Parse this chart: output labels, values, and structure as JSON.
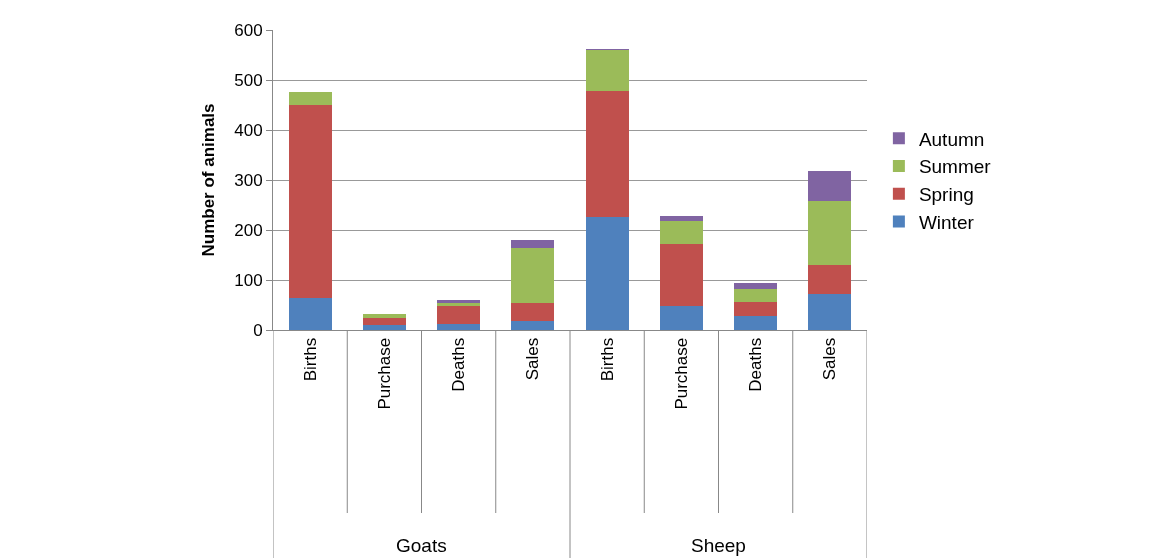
{
  "chart_data": {
    "type": "bar",
    "stacked": true,
    "ylabel": "Number of animals",
    "categories": [
      "Births",
      "Purchase",
      "Deaths",
      "Sales",
      "Births",
      "Purchase",
      "Deaths",
      "Sales"
    ],
    "series": [
      {
        "name": "Winter",
        "color": "#4f81bd",
        "values": [
          65,
          11,
          13,
          18,
          226,
          48,
          28,
          72
        ]
      },
      {
        "name": "Spring",
        "color": "#c0504d",
        "values": [
          385,
          14,
          35,
          37,
          253,
          125,
          29,
          59
        ]
      },
      {
        "name": "Summer",
        "color": "#9bbb59",
        "values": [
          27,
          8,
          7,
          110,
          81,
          46,
          25,
          127
        ]
      },
      {
        "name": "Autumn",
        "color": "#8064a2",
        "values": [
          0,
          0,
          5,
          15,
          2,
          10,
          12,
          61
        ]
      }
    ],
    "annotations": [
      "Goats",
      "Sheep"
    ],
    "ylim": [
      0,
      600
    ],
    "yticks": [
      0,
      100,
      200,
      300,
      400,
      500,
      600
    ],
    "grid": "y",
    "legend": "right"
  }
}
